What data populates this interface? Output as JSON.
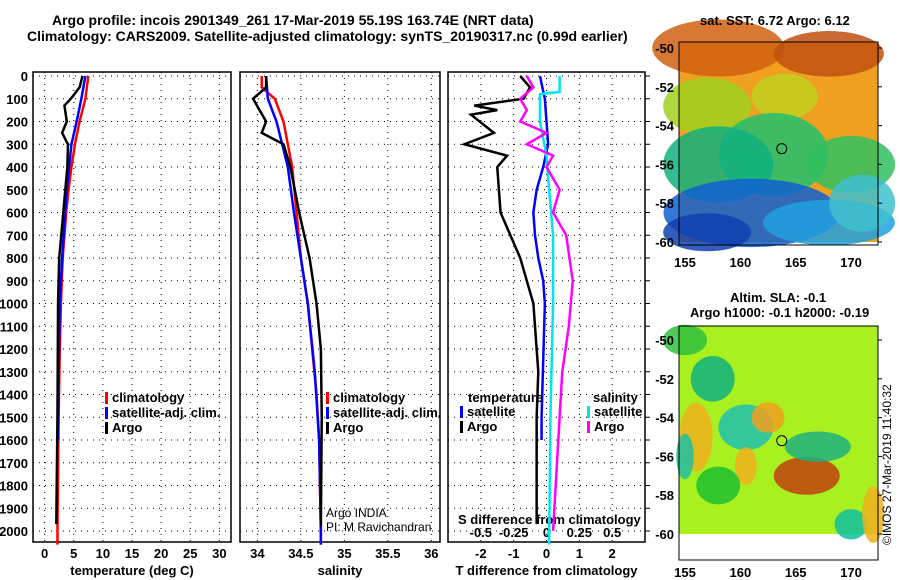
{
  "title_line1": "Argo profile: incois 2901349_261 17-Mar-2019 55.19S 163.74E (NRT data)",
  "title_line2": "Climatology: CARS2009. Satellite-adjusted climatology: synTS_20190317.nc (0.99d earlier)",
  "colors": {
    "climatology": "#ff0000",
    "satellite": "#0000ff",
    "argo": "#000000",
    "sal_satellite": "#00e5ee",
    "sal_argo": "#ff00ff"
  },
  "chart_data": [
    {
      "type": "line",
      "id": "temperature",
      "xlabel": "temperature (deg C)",
      "ylabel": "depth",
      "xlim": [
        -2,
        32
      ],
      "ylim": [
        2080,
        0
      ],
      "xticks": [
        0,
        5,
        10,
        15,
        20,
        25,
        30
      ],
      "yticks": [
        0,
        100,
        200,
        300,
        400,
        500,
        600,
        700,
        800,
        900,
        1000,
        1100,
        1200,
        1300,
        1400,
        1500,
        1600,
        1700,
        1800,
        1900,
        2000
      ],
      "legend": [
        "climatology",
        "satellite-adj. clim.",
        "Argo"
      ],
      "series": [
        {
          "name": "climatology",
          "color": "#ff0000",
          "depth": [
            0,
            100,
            200,
            300,
            400,
            500,
            600,
            800,
            1000,
            1200,
            1500,
            2000,
            2060
          ],
          "values": [
            7.5,
            7,
            6,
            5.2,
            4.6,
            4.1,
            3.7,
            3.1,
            2.8,
            2.6,
            2.4,
            2.2,
            2.2
          ]
        },
        {
          "name": "satellite-adj. clim.",
          "color": "#0000ff",
          "depth": [
            0,
            100,
            200,
            300,
            500,
            800,
            1000,
            1300,
            1600
          ],
          "values": [
            7,
            6.3,
            5.5,
            4.6,
            3.8,
            3,
            2.6,
            2.4,
            2.3
          ]
        },
        {
          "name": "Argo",
          "color": "#000000",
          "depth": [
            0,
            50,
            100,
            130,
            200,
            250,
            300,
            400,
            600,
            800,
            1000,
            1500,
            1970
          ],
          "values": [
            6.5,
            6,
            4.5,
            3.4,
            3.8,
            3,
            4,
            3.9,
            3.2,
            2.5,
            2.3,
            2.2,
            2.0
          ]
        }
      ]
    },
    {
      "type": "line",
      "id": "salinity",
      "xlabel": "salinity",
      "xlim": [
        33.8,
        36.1
      ],
      "ylim": [
        2080,
        0
      ],
      "xticks": [
        34,
        34.5,
        35,
        35.5,
        36
      ],
      "legend": [
        "climatology",
        "satellite-adj. clim.",
        "Argo"
      ],
      "annotation": [
        "Argo INDIA",
        "PI: M Ravichandran"
      ],
      "series": [
        {
          "name": "climatology",
          "color": "#ff0000",
          "depth": [
            0,
            50,
            100,
            200,
            400,
            600,
            800,
            1000,
            1200,
            1400,
            1600,
            2000,
            2060
          ],
          "values": [
            34.05,
            34.05,
            34.2,
            34.3,
            34.4,
            34.45,
            34.5,
            34.58,
            34.63,
            34.68,
            34.71,
            34.73,
            34.73
          ]
        },
        {
          "name": "satellite-adj. clim.",
          "color": "#0000ff",
          "depth": [
            0,
            100,
            200,
            400,
            600,
            800,
            1000,
            1300,
            1600,
            2000,
            2060
          ],
          "values": [
            34.1,
            34.12,
            34.22,
            34.35,
            34.42,
            34.5,
            34.58,
            34.66,
            34.71,
            34.73,
            34.73
          ]
        },
        {
          "name": "Argo",
          "color": "#000000",
          "depth": [
            0,
            50,
            100,
            200,
            250,
            300,
            400,
            600,
            800,
            1000,
            1200,
            1500,
            1980
          ],
          "values": [
            34.1,
            34.1,
            33.95,
            34.1,
            34.05,
            34.3,
            34.38,
            34.48,
            34.6,
            34.68,
            34.73,
            34.74,
            34.73
          ]
        }
      ]
    },
    {
      "type": "line",
      "id": "difference",
      "xlabel": "T difference from climatology",
      "x2label": "S difference from climatology",
      "xlim": [
        -3,
        3
      ],
      "x2lim": [
        -0.75,
        0.75
      ],
      "ylim": [
        2080,
        0
      ],
      "xticks": [
        -2,
        -1,
        0,
        1,
        2
      ],
      "x2ticks": [
        -0.5,
        -0.25,
        0,
        0.25,
        0.5
      ],
      "legend_temperature": {
        "title": "temperature",
        "items": [
          "satellite",
          "Argo"
        ]
      },
      "legend_salinity": {
        "title": "salinity",
        "items": [
          "satellite",
          "Argo"
        ]
      },
      "series": [
        {
          "name": "temperature Argo",
          "axis": "T",
          "color": "#000000",
          "depth": [
            0,
            50,
            100,
            130,
            150,
            170,
            250,
            300,
            350,
            400,
            600,
            800,
            1000,
            1300,
            1500,
            1970
          ],
          "values": [
            -0.8,
            -0.5,
            -0.7,
            -2.2,
            -1.5,
            -2.3,
            -1.6,
            -2.5,
            -1.2,
            -1.5,
            -1.4,
            -0.8,
            -0.4,
            -0.25,
            -0.3,
            -0.3
          ]
        },
        {
          "name": "temperature satellite",
          "axis": "T",
          "color": "#0000ff",
          "depth": [
            0,
            100,
            200,
            300,
            400,
            500,
            600,
            700,
            800,
            900,
            1000,
            1500,
            1600
          ],
          "values": [
            -0.2,
            -0.05,
            0,
            0.05,
            -0.1,
            -0.3,
            -0.4,
            -0.35,
            -0.25,
            -0.1,
            -0.05,
            -0.15,
            -0.15
          ]
        },
        {
          "name": "salinity satellite",
          "axis": "S",
          "color": "#00e5ee",
          "depth": [
            0,
            70,
            80,
            200,
            350,
            500,
            700,
            1000,
            1500,
            2060
          ],
          "values": [
            0.1,
            0.1,
            -0.05,
            -0.05,
            0,
            0.02,
            0.05,
            0.05,
            0.03,
            0.02
          ]
        },
        {
          "name": "salinity Argo",
          "axis": "S",
          "color": "#ff00ff",
          "depth": [
            0,
            50,
            100,
            150,
            200,
            250,
            300,
            350,
            400,
            500,
            600,
            700,
            900,
            1100,
            1300,
            1500,
            2000
          ],
          "values": [
            -0.15,
            -0.1,
            -0.2,
            -0.15,
            -0.2,
            0,
            -0.15,
            0.05,
            0,
            0.1,
            0.05,
            0.15,
            0.2,
            0.17,
            0.12,
            0.1,
            0.05
          ]
        }
      ]
    }
  ],
  "maps": {
    "sst": {
      "title": "sat. SST: 6.72 Argo: 6.12",
      "lon_ticks": [
        155,
        160,
        165,
        170
      ],
      "lat_ticks": [
        -50,
        -52,
        -54,
        -56,
        -58,
        -60
      ],
      "float_lon": 163.74,
      "float_lat": -55.19
    },
    "sla": {
      "title1": "Altim. SLA: -0.1",
      "title2": "Argo h1000: -0.1 h2000: -0.19",
      "lon_ticks": [
        155,
        160,
        165,
        170
      ],
      "lat_ticks": [
        -50,
        -52,
        -54,
        -56,
        -58,
        -60
      ],
      "float_lon": 163.74,
      "float_lat": -55.19
    }
  },
  "credit": "©IMOS 27-Mar-2019 11:40:32"
}
